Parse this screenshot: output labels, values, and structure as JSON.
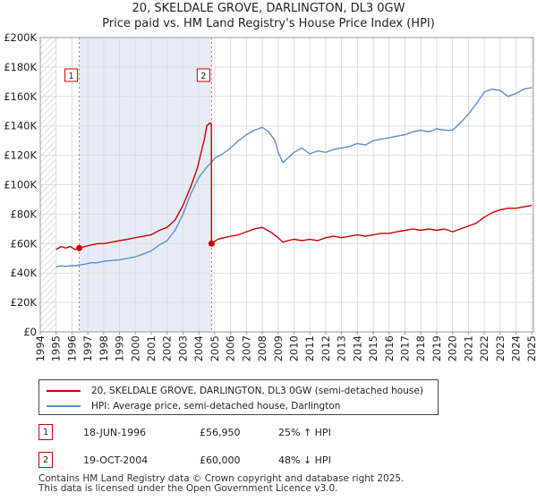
{
  "chart_data": {
    "type": "line",
    "title": "20, SKELDALE GROVE, DARLINGTON, DL3 0GW",
    "subtitle": "Price paid vs. HM Land Registry's House Price Index (HPI)",
    "xlabel": "",
    "ylabel": "",
    "xlim": [
      1994.0,
      2025.1
    ],
    "ylim": [
      0,
      200000
    ],
    "y_ticks": [
      0,
      20000,
      40000,
      60000,
      80000,
      100000,
      120000,
      140000,
      160000,
      180000,
      200000
    ],
    "y_tick_labels": [
      "£0",
      "£20K",
      "£40K",
      "£60K",
      "£80K",
      "£100K",
      "£120K",
      "£140K",
      "£160K",
      "£180K",
      "£200K"
    ],
    "x_ticks": [
      1994,
      1995,
      1996,
      1997,
      1998,
      1999,
      2000,
      2001,
      2002,
      2003,
      2004,
      2005,
      2006,
      2007,
      2008,
      2009,
      2010,
      2011,
      2012,
      2013,
      2014,
      2015,
      2016,
      2017,
      2018,
      2019,
      2020,
      2021,
      2022,
      2023,
      2024,
      2025
    ],
    "grid": true,
    "colors": {
      "property": "#cc0000",
      "hpi": "#5b8fc9",
      "shade": "#e6ecf6",
      "grid": "#dddddd",
      "hatch": "#bbbbbb"
    },
    "series": [
      {
        "name": "20, SKELDALE GROVE, DARLINGTON, DL3 0GW (semi-detached house)",
        "color": "#cc0000",
        "x": [
          1995.0,
          1995.3,
          1995.6,
          1995.9,
          1996.2,
          1996.46,
          1996.8,
          1997.2,
          1997.6,
          1998.0,
          1998.5,
          1999.0,
          1999.5,
          2000.0,
          2000.5,
          2001.0,
          2001.5,
          2002.0,
          2002.5,
          2003.0,
          2003.5,
          2003.9,
          2004.1,
          2004.35,
          2004.5,
          2004.7,
          2004.79,
          2004.8,
          2005.2,
          2005.6,
          2006.0,
          2006.5,
          2007.0,
          2007.5,
          2008.0,
          2008.5,
          2009.0,
          2009.3,
          2009.6,
          2010.0,
          2010.5,
          2011.0,
          2011.5,
          2012.0,
          2012.5,
          2013.0,
          2013.5,
          2014.0,
          2014.5,
          2015.0,
          2015.5,
          2016.0,
          2016.5,
          2017.0,
          2017.5,
          2018.0,
          2018.5,
          2019.0,
          2019.5,
          2020.0,
          2020.5,
          2021.0,
          2021.5,
          2022.0,
          2022.5,
          2023.0,
          2023.5,
          2024.0,
          2024.5,
          2025.0
        ],
        "values": [
          56000,
          58000,
          57000,
          58000,
          56000,
          56950,
          58000,
          59000,
          60000,
          60000,
          61000,
          62000,
          63000,
          64000,
          65000,
          66000,
          69000,
          71000,
          76000,
          86000,
          99000,
          111000,
          120000,
          131000,
          140000,
          142000,
          141000,
          60000,
          63000,
          64000,
          65000,
          66000,
          68000,
          70000,
          71000,
          68000,
          64000,
          61000,
          62000,
          63000,
          62000,
          63000,
          62000,
          64000,
          65000,
          64000,
          65000,
          66000,
          65000,
          66000,
          67000,
          67000,
          68000,
          69000,
          70000,
          69000,
          70000,
          69000,
          70000,
          68000,
          70000,
          72000,
          74000,
          78000,
          81000,
          83000,
          84000,
          84000,
          85000,
          86000
        ]
      },
      {
        "name": "HPI: Average price, semi-detached house, Darlington",
        "color": "#5b8fc9",
        "x": [
          1995.0,
          1995.3,
          1995.6,
          1995.9,
          1996.2,
          1996.46,
          1996.8,
          1997.2,
          1997.6,
          1998.0,
          1998.5,
          1999.0,
          1999.5,
          2000.0,
          2000.5,
          2001.0,
          2001.5,
          2002.0,
          2002.5,
          2003.0,
          2003.5,
          2004.0,
          2004.5,
          2004.79,
          2005.0,
          2005.5,
          2006.0,
          2006.5,
          2007.0,
          2007.5,
          2008.0,
          2008.4,
          2008.8,
          2009.0,
          2009.3,
          2009.6,
          2010.0,
          2010.5,
          2011.0,
          2011.5,
          2012.0,
          2012.5,
          2013.0,
          2013.5,
          2014.0,
          2014.5,
          2015.0,
          2015.5,
          2016.0,
          2016.5,
          2017.0,
          2017.5,
          2018.0,
          2018.5,
          2019.0,
          2019.5,
          2020.0,
          2020.5,
          2021.0,
          2021.5,
          2022.0,
          2022.5,
          2023.0,
          2023.5,
          2024.0,
          2024.5,
          2025.0
        ],
        "values": [
          44000,
          45000,
          44500,
          45000,
          45000,
          45500,
          46000,
          47000,
          47000,
          48000,
          48500,
          49000,
          50000,
          51000,
          53000,
          55000,
          59000,
          62000,
          69000,
          80000,
          94000,
          105000,
          112000,
          115000,
          118000,
          121000,
          125000,
          130000,
          134000,
          137000,
          139000,
          136000,
          130000,
          122000,
          115000,
          118000,
          122000,
          125000,
          121000,
          123000,
          122000,
          124000,
          125000,
          126000,
          128000,
          127000,
          130000,
          131000,
          132000,
          133000,
          134000,
          136000,
          137000,
          136000,
          138000,
          137000,
          137000,
          142000,
          148000,
          155000,
          163000,
          165000,
          164000,
          160000,
          162000,
          165000,
          166000
        ]
      }
    ],
    "annotations": [
      {
        "label": "1",
        "x": 1996.46,
        "value": 56950
      },
      {
        "label": "2",
        "x": 2004.8,
        "value": 60000
      }
    ]
  },
  "legend": {
    "property_label": "20, SKELDALE GROVE, DARLINGTON, DL3 0GW (semi-detached house)",
    "hpi_label": "HPI: Average price, semi-detached house, Darlington"
  },
  "sales": [
    {
      "num": "1",
      "date": "18-JUN-1996",
      "price": "£56,950",
      "hpi": "25% ↑ HPI"
    },
    {
      "num": "2",
      "date": "19-OCT-2004",
      "price": "£60,000",
      "hpi": "48% ↓ HPI"
    }
  ],
  "footer": {
    "line1": "Contains HM Land Registry data © Crown copyright and database right 2025.",
    "line2": "This data is licensed under the Open Government Licence v3.0."
  }
}
